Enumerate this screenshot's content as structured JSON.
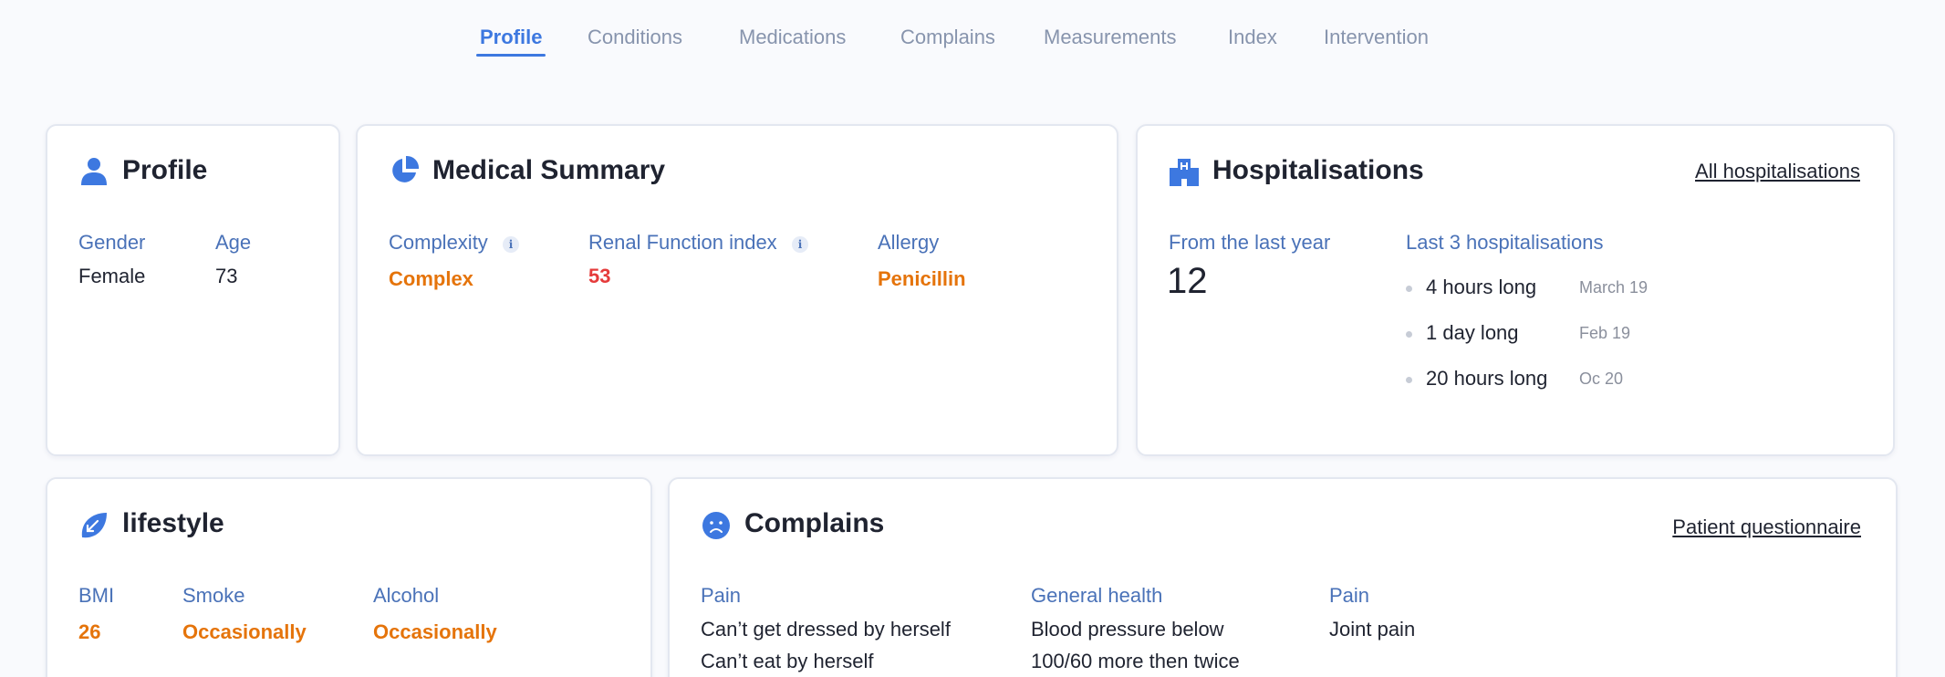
{
  "tabs": [
    {
      "label": "Profile",
      "active": true
    },
    {
      "label": "Conditions"
    },
    {
      "label": "Medications"
    },
    {
      "label": "Complains"
    },
    {
      "label": "Measurements"
    },
    {
      "label": "Index"
    },
    {
      "label": "Intervention"
    }
  ],
  "colors": {
    "accent": "#3d78e0",
    "label": "#4a72b8",
    "warning": "#e5740b",
    "danger": "#e53b3b"
  },
  "profile": {
    "title": "Profile",
    "icon": "person-icon",
    "gender_label": "Gender",
    "gender_value": "Female",
    "age_label": "Age",
    "age_value": "73"
  },
  "medical_summary": {
    "title": "Medical Summary",
    "icon": "pie-chart-icon",
    "complexity_label": "Complexity",
    "complexity_value": "Complex",
    "renal_label": "Renal Function index",
    "renal_value": "53",
    "allergy_label": "Allergy",
    "allergy_value": "Penicillin"
  },
  "hospitalisations": {
    "title": "Hospitalisations",
    "icon": "hospital-icon",
    "all_link": "All hospitalisations",
    "last_year_label": "From the last year",
    "last_year_value": "12",
    "last3_label": "Last 3 hospitalisations",
    "items": [
      {
        "duration": "4 hours long",
        "date": "March 19"
      },
      {
        "duration": "1 day long",
        "date": "Feb 19"
      },
      {
        "duration": "20 hours long",
        "date": "Oc 20"
      }
    ]
  },
  "lifestyle": {
    "title": "lifestyle",
    "icon": "leaf-icon",
    "bmi_label": "BMI",
    "bmi_value": "26",
    "smoke_label": "Smoke",
    "smoke_value": "Occasionally",
    "alcohol_label": "Alcohol",
    "alcohol_value": "Occasionally"
  },
  "complains": {
    "title": "Complains",
    "icon": "sad-face-icon",
    "questionnaire_link": "Patient questionnaire",
    "col1_label": "Pain",
    "col1_lines": [
      "Can’t get dressed by herself",
      "Can’t eat by herself"
    ],
    "col2_label": "General health",
    "col2_lines": [
      "Blood pressure below",
      "100/60 more then twice"
    ],
    "col3_label": "Pain",
    "col3_lines": [
      "Joint pain"
    ]
  }
}
